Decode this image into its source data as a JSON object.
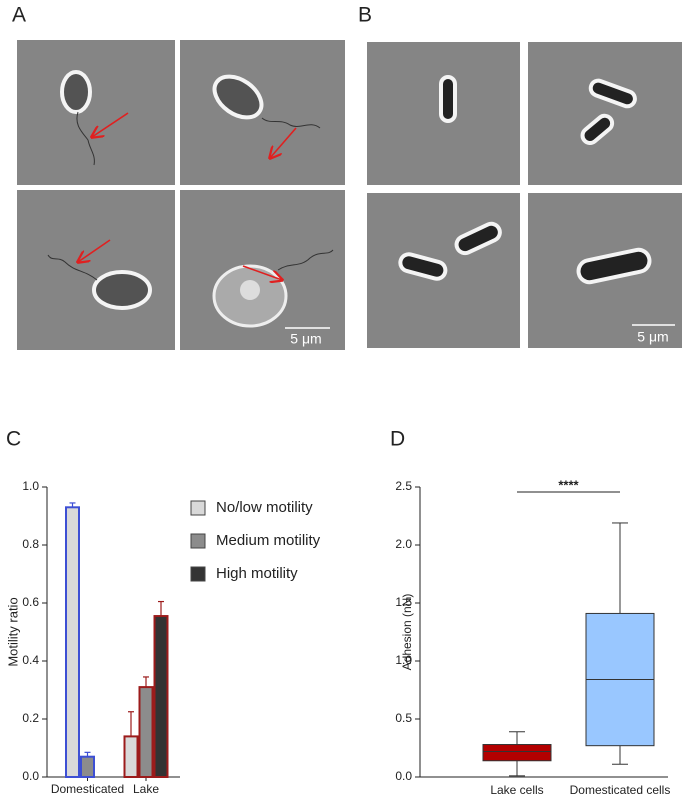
{
  "figure": {
    "panel_labels": [
      "A",
      "B",
      "C",
      "D"
    ],
    "scale_bars": [
      "5 μm",
      "5 μm"
    ]
  },
  "chart_data": [
    {
      "type": "bar",
      "ylabel": "Motility ratio",
      "categories": [
        "Domesticated",
        "Lake"
      ],
      "edge_colors": [
        "#3d4fd4",
        "#9c1b1b"
      ],
      "series": [
        {
          "name": "No/low motility",
          "color": "#d9d9d9",
          "values": [
            0.93,
            0.14
          ],
          "errors": [
            0.015,
            0.085
          ]
        },
        {
          "name": "Medium motility",
          "color": "#8c8c8c",
          "values": [
            0.07,
            0.31
          ],
          "errors": [
            0.015,
            0.035
          ]
        },
        {
          "name": "High motility",
          "color": "#333333",
          "values": [
            null,
            0.555
          ],
          "errors": [
            null,
            0.05
          ]
        }
      ],
      "ylim": [
        0,
        1
      ],
      "yticks": [
        {
          "value": 0,
          "label": "0.0"
        },
        0.2,
        0.4,
        0.6,
        0.8,
        {
          "value": 1,
          "label": "1.0"
        }
      ]
    },
    {
      "type": "box",
      "ylabel": "Adhesion (nN)",
      "categories": [
        "Lake cells",
        "Domesticated cells"
      ],
      "boxes": [
        {
          "min": 0.01,
          "q1": 0.14,
          "median": 0.22,
          "q3": 0.28,
          "max": 0.39,
          "color": "#b30000"
        },
        {
          "min": 0.11,
          "q1": 0.27,
          "median": 0.84,
          "q3": 1.41,
          "max": 2.19,
          "color": "#99c7ff"
        }
      ],
      "significance": "****",
      "ylim": [
        0,
        2.5
      ],
      "yticks": [
        {
          "value": 0,
          "label": "0.0"
        },
        0.5,
        {
          "value": 1,
          "label": "1.0"
        },
        1.5,
        {
          "value": 2,
          "label": "2.0"
        },
        2.5
      ]
    }
  ]
}
